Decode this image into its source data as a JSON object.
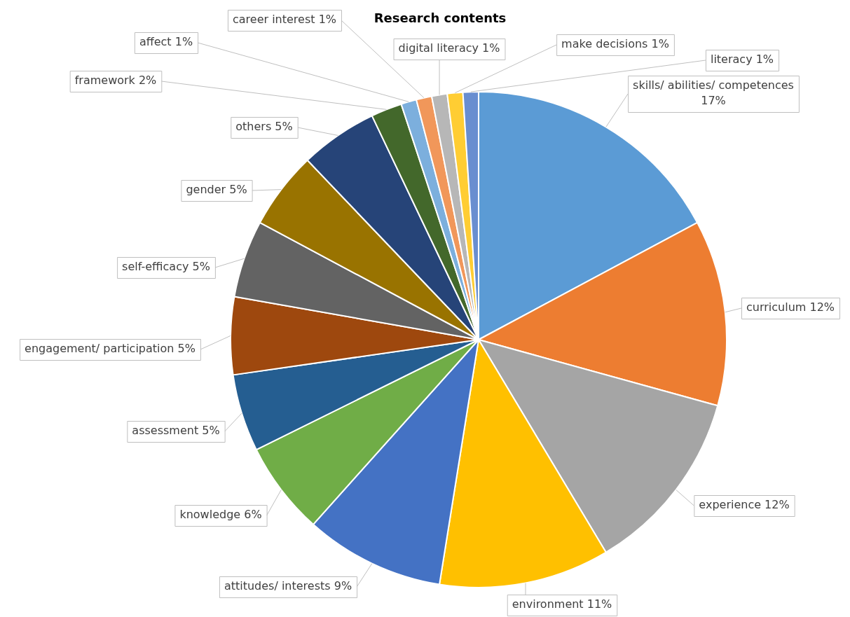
{
  "chart_data": {
    "type": "pie",
    "title": "Research contents",
    "categories": [
      "skills/ abilities/ competences",
      "curriculum",
      "experience",
      "environment",
      "attitudes/ interests",
      "knowledge",
      "assessment",
      "engagement/ participation",
      "self-efficacy",
      "gender",
      "others",
      "framework",
      "affect",
      "career interest",
      "digital literacy",
      "make decisions",
      "literacy"
    ],
    "values": [
      17,
      12,
      12,
      11,
      9,
      6,
      5,
      5,
      5,
      5,
      5,
      2,
      1,
      1,
      1,
      1,
      1
    ],
    "value_labels": [
      "17%",
      "12%",
      "12%",
      "11%",
      "9%",
      "6%",
      "5%",
      "5%",
      "5%",
      "5%",
      "5%",
      "2%",
      "1%",
      "1%",
      "1%",
      "1%",
      "1%"
    ],
    "colors": [
      "#5b9bd5",
      "#ed7d31",
      "#a5a5a5",
      "#ffc000",
      "#4472c4",
      "#70ad47",
      "#255e91",
      "#9e480e",
      "#636363",
      "#997300",
      "#264478",
      "#43682b",
      "#7cafdd",
      "#f1975a",
      "#b7b7b7",
      "#ffcd33",
      "#698ed0"
    ],
    "legend": false
  }
}
